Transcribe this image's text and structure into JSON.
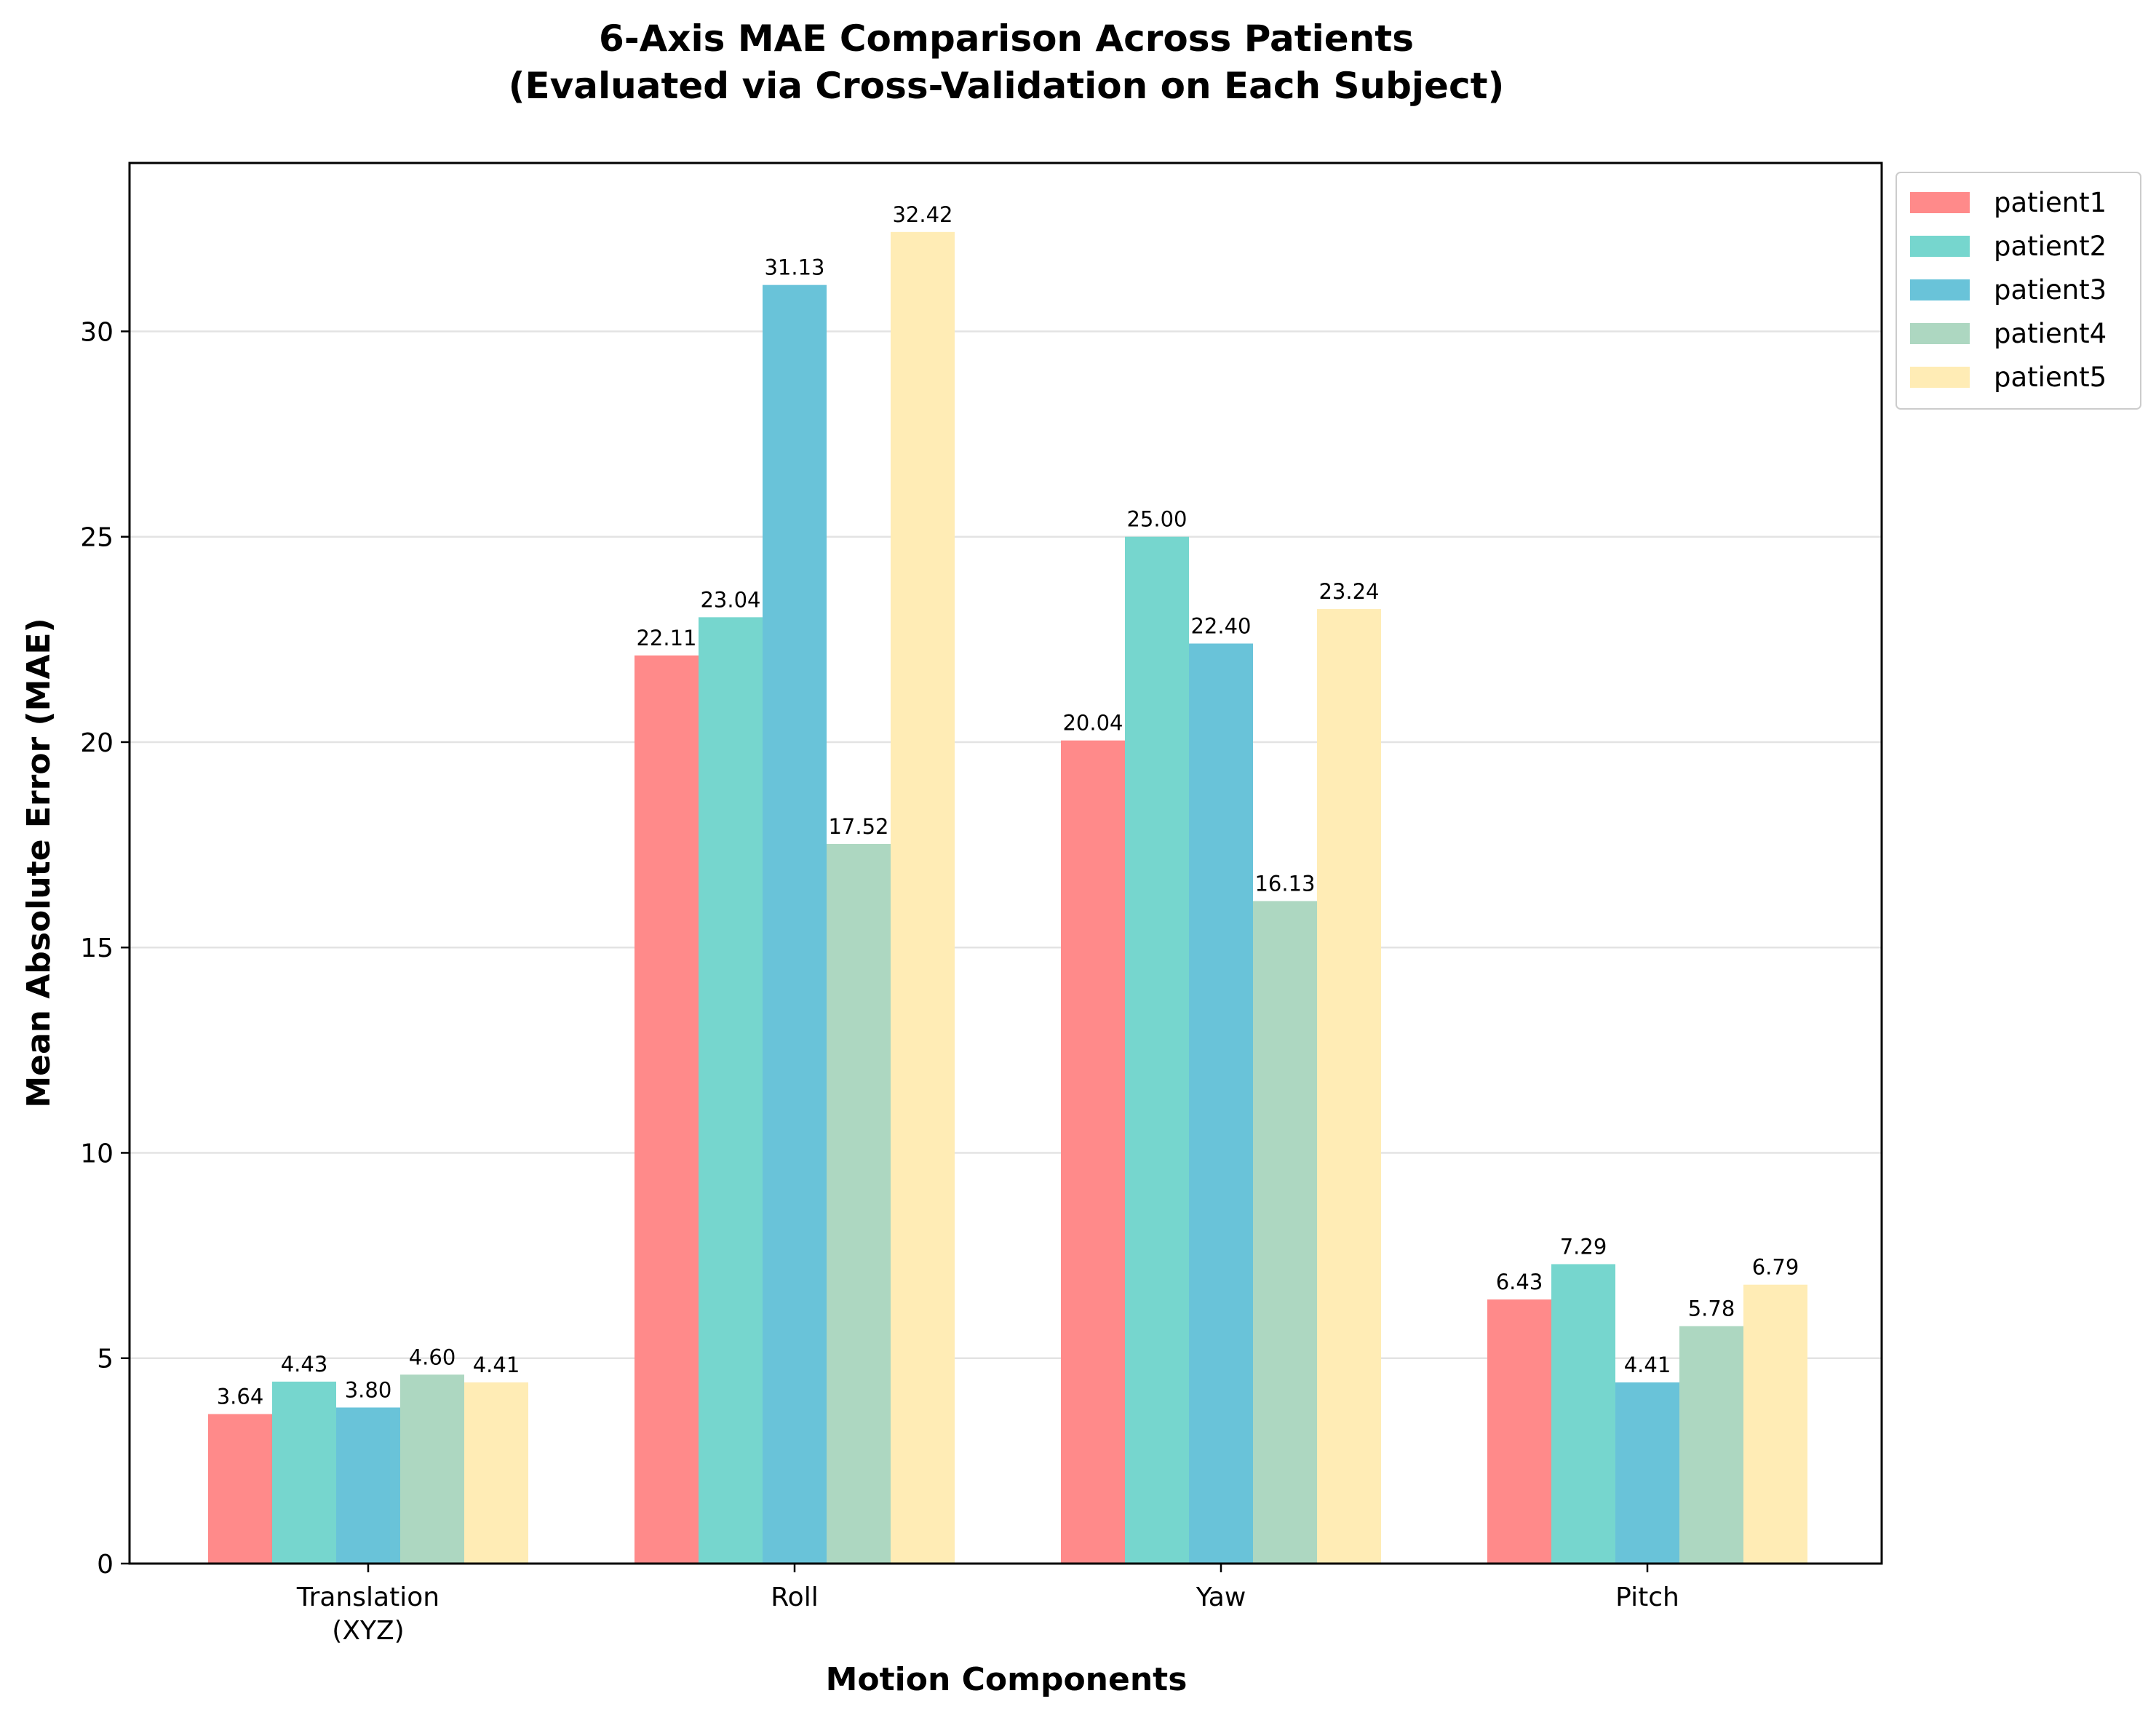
{
  "chart_data": {
    "type": "bar",
    "title": "6-Axis MAE Comparison Across Patients",
    "subtitle": "(Evaluated via Cross-Validation on Each Subject)",
    "xlabel": "Motion Components",
    "ylabel": "Mean Absolute Error (MAE)",
    "categories": [
      [
        "Translation",
        "(XYZ)"
      ],
      [
        "Roll"
      ],
      [
        "Yaw"
      ],
      [
        "Pitch"
      ]
    ],
    "ylim": [
      0,
      34.1
    ],
    "yticks": [
      0,
      5,
      10,
      15,
      20,
      25,
      30
    ],
    "grid": "y",
    "legend_position": "outside-top-right",
    "series": [
      {
        "name": "patient1",
        "color": "#FF8A8A",
        "values": [
          3.64,
          22.11,
          20.04,
          6.43
        ],
        "labels": [
          "3.64",
          "22.11",
          "20.04",
          "6.43"
        ]
      },
      {
        "name": "patient2",
        "color": "#76D6CE",
        "values": [
          4.43,
          23.04,
          25.0,
          7.29
        ],
        "labels": [
          "4.43",
          "23.04",
          "25.00",
          "7.29"
        ]
      },
      {
        "name": "patient3",
        "color": "#69C3D9",
        "values": [
          3.8,
          31.13,
          22.4,
          4.41
        ],
        "labels": [
          "3.80",
          "31.13",
          "22.40",
          "4.41"
        ]
      },
      {
        "name": "patient4",
        "color": "#ADD7C1",
        "values": [
          4.6,
          17.52,
          16.13,
          5.78
        ],
        "labels": [
          "4.60",
          "17.52",
          "16.13",
          "5.78"
        ]
      },
      {
        "name": "patient5",
        "color": "#FFECB5",
        "values": [
          4.41,
          32.42,
          23.24,
          6.79
        ],
        "labels": [
          "4.41",
          "32.42",
          "23.24",
          "6.79"
        ]
      }
    ]
  }
}
